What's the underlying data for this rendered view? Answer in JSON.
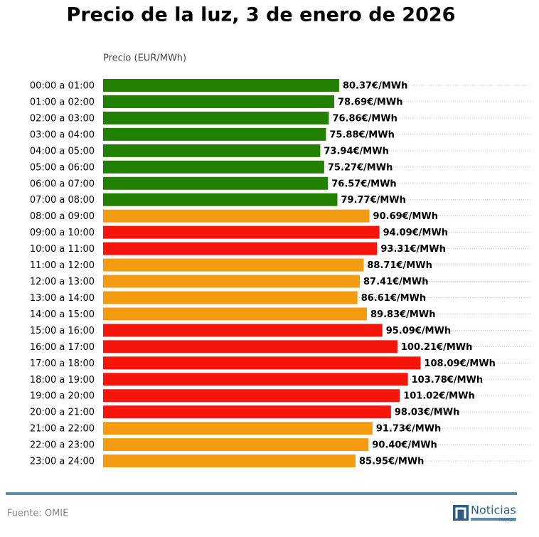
{
  "chart_data": {
    "type": "barh",
    "title": "Precio de la luz, 3 de enero de 2026",
    "xlabel": "Precio (EUR/MWh)",
    "categories": [
      "00:00 a 01:00",
      "01:00 a 02:00",
      "02:00 a 03:00",
      "03:00 a 04:00",
      "04:00 a 05:00",
      "05:00 a 06:00",
      "06:00 a 07:00",
      "07:00 a 08:00",
      "08:00 a 09:00",
      "09:00 a 10:00",
      "10:00 a 11:00",
      "11:00 a 12:00",
      "12:00 a 13:00",
      "13:00 a 14:00",
      "14:00 a 15:00",
      "15:00 a 16:00",
      "16:00 a 17:00",
      "17:00 a 18:00",
      "18:00 a 19:00",
      "19:00 a 20:00",
      "20:00 a 21:00",
      "21:00 a 22:00",
      "22:00 a 23:00",
      "23:00 a 24:00"
    ],
    "values": [
      80.37,
      78.69,
      76.86,
      75.88,
      73.94,
      75.27,
      76.57,
      79.77,
      90.69,
      94.09,
      93.31,
      88.71,
      87.41,
      86.61,
      89.83,
      95.09,
      100.21,
      108.09,
      103.78,
      101.02,
      98.03,
      91.73,
      90.4,
      85.95
    ],
    "value_labels": [
      "80.37€/MWh",
      "78.69€/MWh",
      "76.86€/MWh",
      "75.88€/MWh",
      "73.94€/MWh",
      "75.27€/MWh",
      "76.57€/MWh",
      "79.77€/MWh",
      "90.69€/MWh",
      "94.09€/MWh",
      "93.31€/MWh",
      "88.71€/MWh",
      "87.41€/MWh",
      "86.61€/MWh",
      "89.83€/MWh",
      "95.09€/MWh",
      "100.21€/MWh",
      "108.09€/MWh",
      "103.78€/MWh",
      "101.02€/MWh",
      "98.03€/MWh",
      "91.73€/MWh",
      "90.40€/MWh",
      "85.95€/MWh"
    ],
    "colors": [
      "#218000",
      "#218000",
      "#218000",
      "#218000",
      "#218000",
      "#218000",
      "#218000",
      "#218000",
      "#f39c12",
      "#f5150a",
      "#f5150a",
      "#f39c12",
      "#f39c12",
      "#f39c12",
      "#f39c12",
      "#f5150a",
      "#f5150a",
      "#f5150a",
      "#f5150a",
      "#f5150a",
      "#f5150a",
      "#f39c12",
      "#f39c12",
      "#f39c12"
    ],
    "xlim": [
      0,
      146
    ],
    "grid": true
  },
  "footer": {
    "source": "Fuente: OMIE",
    "logo_name": "Noticias",
    "logo_tagline": "TRABAJO"
  }
}
